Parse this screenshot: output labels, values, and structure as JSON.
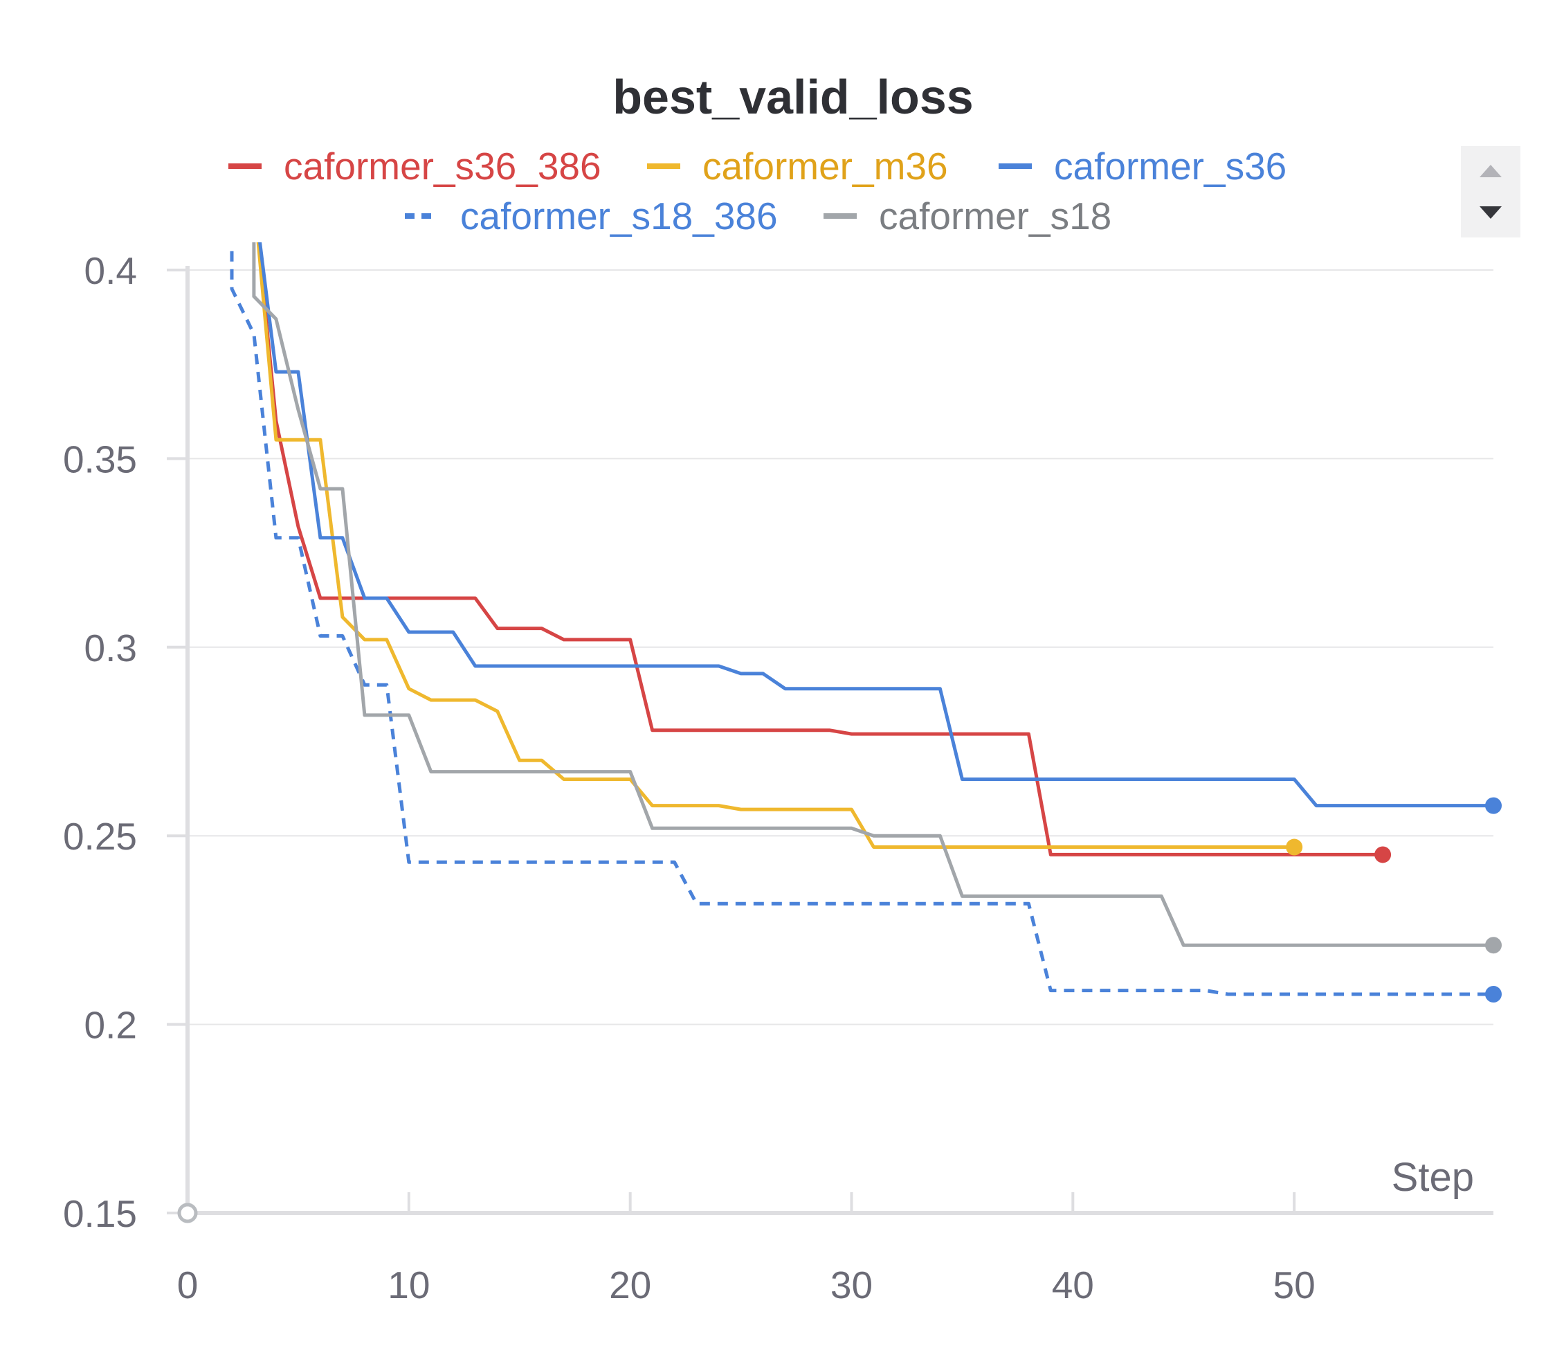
{
  "chart_data": {
    "type": "line",
    "title": "best_valid_loss",
    "xlabel": "Step",
    "ylabel": "",
    "xlim": [
      0,
      59
    ],
    "ylim": [
      0.15,
      0.4
    ],
    "xticks": [
      0,
      10,
      20,
      30,
      40,
      50
    ],
    "yticks": [
      0.4,
      0.35,
      0.3,
      0.25,
      0.2,
      0.15
    ],
    "ytick_labels": [
      "0.4",
      "0.35",
      "0.3",
      "0.25",
      "0.2",
      "0.15"
    ],
    "grid": true,
    "legend_position": "top",
    "series": [
      {
        "name": "caformer_s36_386",
        "color": "#d64545",
        "dashed": false,
        "points": [
          [
            3,
            0.42
          ],
          [
            4,
            0.36
          ],
          [
            5,
            0.332
          ],
          [
            6,
            0.313
          ],
          [
            7,
            0.313
          ],
          [
            13,
            0.313
          ],
          [
            14,
            0.305
          ],
          [
            16,
            0.305
          ],
          [
            17,
            0.302
          ],
          [
            20,
            0.302
          ],
          [
            21,
            0.278
          ],
          [
            29,
            0.278
          ],
          [
            30,
            0.277
          ],
          [
            38,
            0.277
          ],
          [
            39,
            0.245
          ],
          [
            54,
            0.245
          ]
        ]
      },
      {
        "name": "caformer_m36",
        "color": "#efb82e",
        "dashed": false,
        "points": [
          [
            3,
            0.42
          ],
          [
            4,
            0.355
          ],
          [
            6,
            0.355
          ],
          [
            7,
            0.308
          ],
          [
            8,
            0.302
          ],
          [
            9,
            0.302
          ],
          [
            10,
            0.289
          ],
          [
            11,
            0.286
          ],
          [
            13,
            0.286
          ],
          [
            14,
            0.283
          ],
          [
            15,
            0.27
          ],
          [
            16,
            0.27
          ],
          [
            17,
            0.265
          ],
          [
            20,
            0.265
          ],
          [
            21,
            0.258
          ],
          [
            24,
            0.258
          ],
          [
            25,
            0.257
          ],
          [
            30,
            0.257
          ],
          [
            31,
            0.247
          ],
          [
            50,
            0.247
          ]
        ]
      },
      {
        "name": "caformer_s36",
        "color": "#4a82d9",
        "dashed": false,
        "points": [
          [
            3,
            0.42
          ],
          [
            4,
            0.373
          ],
          [
            5,
            0.373
          ],
          [
            6,
            0.329
          ],
          [
            7,
            0.329
          ],
          [
            8,
            0.313
          ],
          [
            9,
            0.313
          ],
          [
            10,
            0.304
          ],
          [
            12,
            0.304
          ],
          [
            13,
            0.295
          ],
          [
            24,
            0.295
          ],
          [
            25,
            0.293
          ],
          [
            26,
            0.293
          ],
          [
            27,
            0.289
          ],
          [
            34,
            0.289
          ],
          [
            35,
            0.265
          ],
          [
            50,
            0.265
          ],
          [
            51,
            0.258
          ],
          [
            59,
            0.258
          ]
        ]
      },
      {
        "name": "caformer_s18_386",
        "color": "#4a82d9",
        "dashed": true,
        "points": [
          [
            2,
            0.405
          ],
          [
            2,
            0.395
          ],
          [
            3,
            0.383
          ],
          [
            4,
            0.329
          ],
          [
            5,
            0.329
          ],
          [
            6,
            0.303
          ],
          [
            7,
            0.303
          ],
          [
            8,
            0.29
          ],
          [
            9,
            0.29
          ],
          [
            10,
            0.243
          ],
          [
            22,
            0.243
          ],
          [
            23,
            0.232
          ],
          [
            38,
            0.232
          ],
          [
            39,
            0.209
          ],
          [
            46,
            0.209
          ],
          [
            47,
            0.208
          ],
          [
            59,
            0.208
          ]
        ]
      },
      {
        "name": "caformer_s18",
        "color": "#a2a6aa",
        "dashed": false,
        "points": [
          [
            3,
            0.42
          ],
          [
            3,
            0.393
          ],
          [
            4,
            0.387
          ],
          [
            5,
            0.363
          ],
          [
            6,
            0.342
          ],
          [
            7,
            0.342
          ],
          [
            8,
            0.282
          ],
          [
            10,
            0.282
          ],
          [
            11,
            0.267
          ],
          [
            20,
            0.267
          ],
          [
            21,
            0.252
          ],
          [
            30,
            0.252
          ],
          [
            31,
            0.25
          ],
          [
            34,
            0.25
          ],
          [
            35,
            0.234
          ],
          [
            44,
            0.234
          ],
          [
            45,
            0.221
          ],
          [
            59,
            0.221
          ]
        ]
      }
    ]
  },
  "legend_scroll": {
    "up_icon": "triangle-up-icon",
    "down_icon": "triangle-down-icon"
  }
}
